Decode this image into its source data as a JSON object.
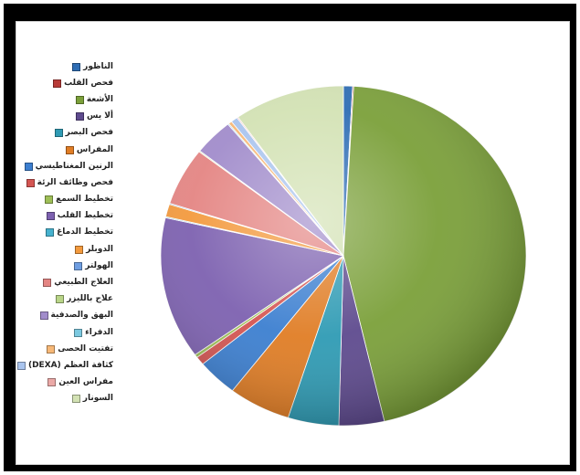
{
  "chart_data": {
    "type": "pie",
    "title": "",
    "legend_position": "left",
    "categories": [
      "الناظور",
      "فحص القلب",
      "الأشعة",
      "ألا يس",
      "فحص البصر",
      "المفراس",
      "الرنين المغناطيسي",
      "فحص وظائف الرئة",
      "تخطيط السمع",
      "تخطيط القلب",
      "تخطيط الدماغ",
      "الدوبلر",
      "الهولتر",
      "العلاج الطبيعي",
      "علاج بالليزر",
      "البهق والصدفية",
      "الدفراء",
      "تفتيت الحصى",
      "كثافة العظم (DEXA)",
      "مفراس العين",
      "السونار"
    ],
    "values": [
      0.8,
      0.1,
      45.5,
      4.0,
      4.5,
      5.5,
      3.6,
      0.8,
      0.3,
      13.5,
      0.1,
      1.2,
      0.1,
      5.5,
      0.1,
      3.5,
      0.1,
      0.3,
      0.6,
      0.1,
      9.8
    ],
    "colors": [
      "#2e6db4",
      "#b83b38",
      "#7ba03a",
      "#5e4a8e",
      "#2f9bb4",
      "#e07d25",
      "#3c7fd0",
      "#d45552",
      "#9ebf57",
      "#7d61b0",
      "#46b2cf",
      "#f39a3e",
      "#6f9ee2",
      "#e48583",
      "#b9d588",
      "#a18ccb",
      "#7cc9e0",
      "#f7b877",
      "#a9c4ee",
      "#eba9a7",
      "#d3e2b4"
    ]
  }
}
